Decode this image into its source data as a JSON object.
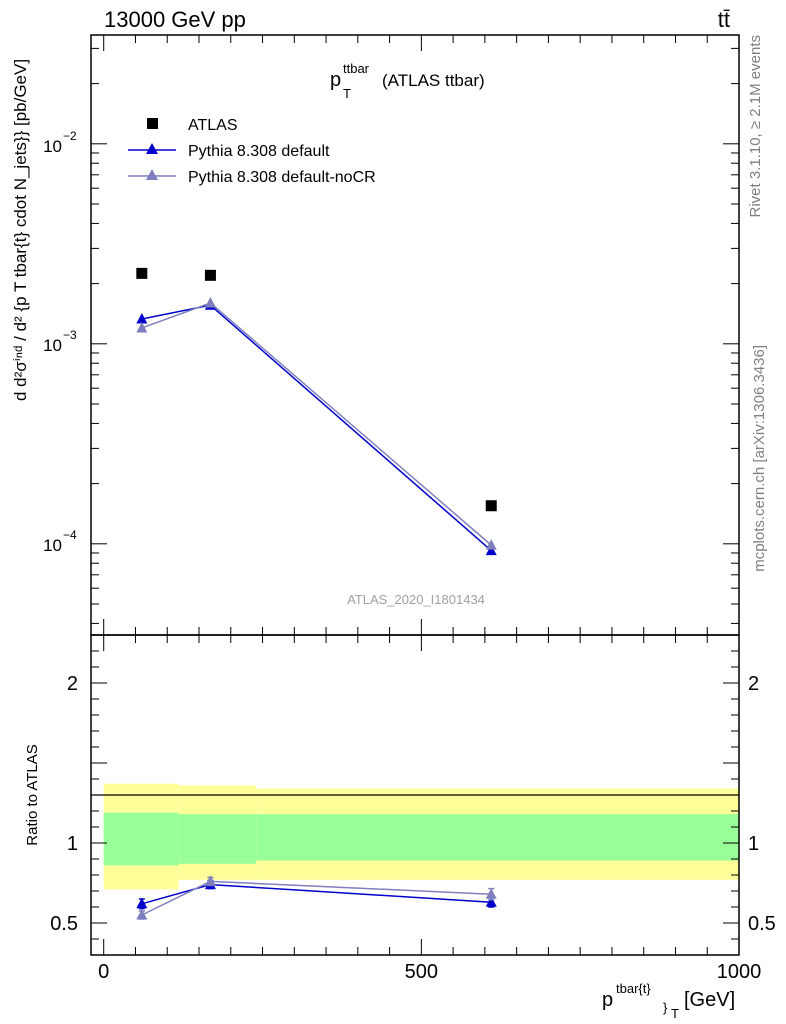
{
  "header": {
    "left": "13000 GeV pp",
    "right": "tt̄"
  },
  "chart_data": [
    {
      "type": "line",
      "title_main": "p",
      "title_sup": "ttbar",
      "title_sub": "T",
      "title_rest": "(ATLAS ttbar)",
      "ylabel": "d d²σⁱⁿᵈ / d² {p T tbar{t} cdot N_jets}} [pb/GeV]",
      "yscale": "log",
      "ylim": [
        3.5e-05,
        0.035
      ],
      "xlim": [
        -20,
        1000
      ],
      "ytick_labels": [
        {
          "value": 0.01,
          "base": "10",
          "exp": "−2"
        },
        {
          "value": 0.001,
          "base": "10",
          "exp": "−3"
        },
        {
          "value": 0.0001,
          "base": "10",
          "exp": "−4"
        }
      ],
      "legend_position": "top-left",
      "watermark": "ATLAS_2020_I1801434",
      "series": [
        {
          "name": "ATLAS",
          "marker": "square",
          "color": "#000000",
          "x": [
            60,
            168,
            610
          ],
          "y": [
            0.00225,
            0.0022,
            0.000155
          ]
        },
        {
          "name": "Pythia 8.308 default",
          "marker": "triangle",
          "color": "#0000cc",
          "x": [
            60,
            168,
            610
          ],
          "y": [
            0.00133,
            0.00156,
            9.25e-05
          ]
        },
        {
          "name": "Pythia 8.308 default-noCR",
          "marker": "triangle",
          "color": "#7f7fbf",
          "x": [
            60,
            168,
            610
          ],
          "y": [
            0.0012,
            0.0016,
            9.85e-05
          ]
        }
      ]
    },
    {
      "type": "line",
      "ylabel": "Ratio to ATLAS",
      "xlabel_main": "p",
      "xlabel_sup": "tbar{t}",
      "xlabel_sub": "}",
      "xlabel_sub2": "T",
      "xlabel_unit": "[GeV]",
      "ylim": [
        0.3,
        2.3
      ],
      "xlim": [
        -20,
        1000
      ],
      "yticks": [
        0.5,
        1,
        2
      ],
      "ytick_labels": [
        "0.5",
        "1",
        "2"
      ],
      "xticks": [
        0,
        500,
        1000
      ],
      "xtick_labels": [
        "0",
        "500",
        "1000"
      ],
      "bands": [
        {
          "x0": 0,
          "x1": 118,
          "yellow": [
            0.71,
            1.37
          ],
          "green": [
            0.86,
            1.19
          ]
        },
        {
          "x0": 118,
          "x1": 240,
          "yellow": [
            0.77,
            1.36
          ],
          "green": [
            0.87,
            1.18
          ]
        },
        {
          "x0": 240,
          "x1": 1000,
          "yellow": [
            0.77,
            1.34
          ],
          "green": [
            0.89,
            1.18
          ]
        }
      ],
      "series": [
        {
          "name": "Pythia 8.308 default",
          "color": "#0000cc",
          "x": [
            60,
            168,
            610
          ],
          "y": [
            0.62,
            0.74,
            0.63
          ],
          "err": [
            0.03,
            0.025,
            0.03
          ]
        },
        {
          "name": "Pythia 8.308 default-noCR",
          "color": "#7f7fbf",
          "x": [
            60,
            168,
            610
          ],
          "y": [
            0.55,
            0.76,
            0.68
          ],
          "err": [
            0.025,
            0.025,
            0.035
          ]
        }
      ]
    }
  ],
  "side_labels": {
    "rivet": "Rivet 3.1.10, ≥ 2.1M events",
    "mcplots": "mcplots.cern.ch [arXiv:1306.3436]"
  }
}
